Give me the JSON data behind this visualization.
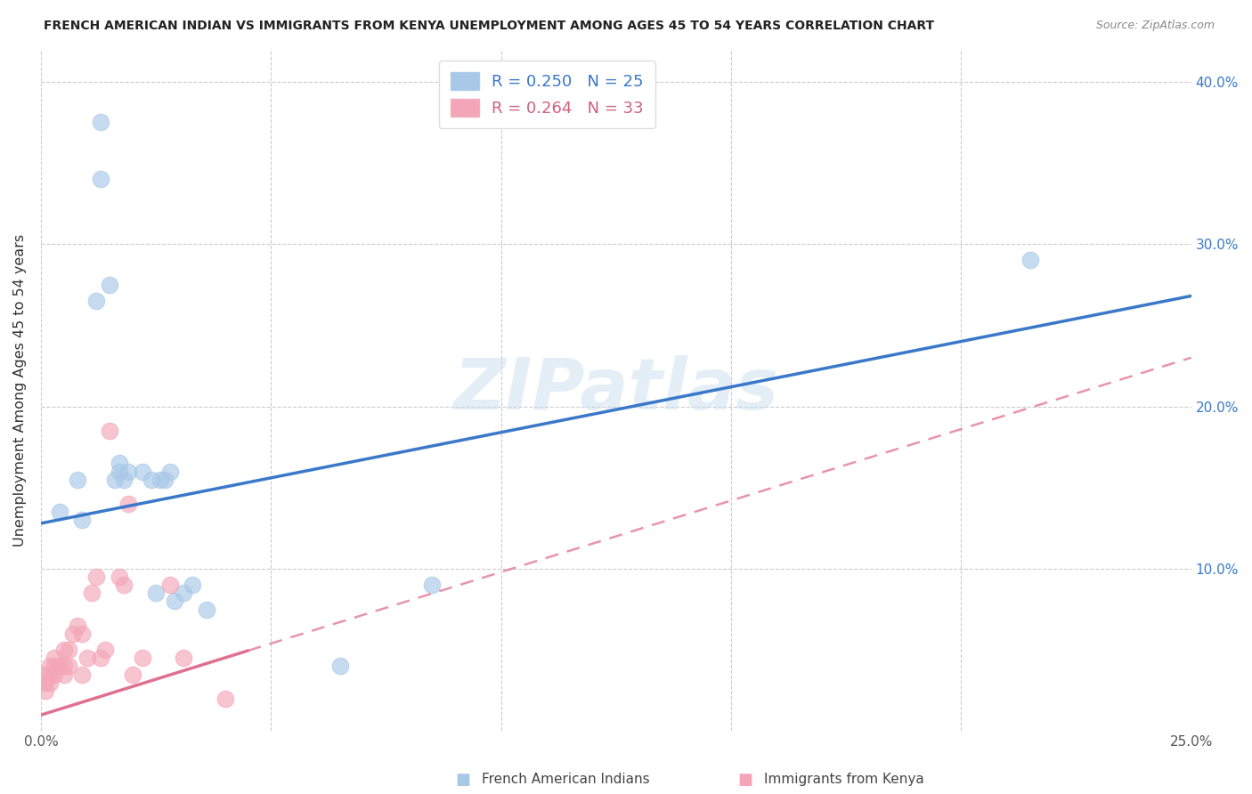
{
  "title": "FRENCH AMERICAN INDIAN VS IMMIGRANTS FROM KENYA UNEMPLOYMENT AMONG AGES 45 TO 54 YEARS CORRELATION CHART",
  "source": "Source: ZipAtlas.com",
  "xlabel_bottom_blue": "French American Indians",
  "xlabel_bottom_pink": "Immigrants from Kenya",
  "ylabel": "Unemployment Among Ages 45 to 54 years",
  "xlim": [
    0.0,
    0.25
  ],
  "ylim": [
    0.0,
    0.42
  ],
  "xticks": [
    0.0,
    0.05,
    0.1,
    0.15,
    0.2,
    0.25
  ],
  "xtick_labels": [
    "0.0%",
    "",
    "",
    "",
    "",
    "25.0%"
  ],
  "yticks": [
    0.0,
    0.1,
    0.2,
    0.3,
    0.4
  ],
  "ytick_labels_right": [
    "",
    "10.0%",
    "20.0%",
    "30.0%",
    "40.0%"
  ],
  "legend_blue_R": "R = 0.250",
  "legend_blue_N": "N = 25",
  "legend_pink_R": "R = 0.264",
  "legend_pink_N": "N = 33",
  "blue_color": "#a8c8e8",
  "pink_color": "#f4a6b8",
  "blue_line_color": "#3a78c9",
  "pink_line_color": "#e07090",
  "pink_line_solid_end": 0.045,
  "watermark_text": "ZIPatlas",
  "blue_line_intercept": 0.128,
  "blue_line_slope": 0.56,
  "pink_line_intercept": 0.01,
  "pink_line_slope": 0.88,
  "blue_scatter_x": [
    0.004,
    0.008,
    0.009,
    0.012,
    0.013,
    0.013,
    0.015,
    0.016,
    0.017,
    0.017,
    0.018,
    0.019,
    0.022,
    0.024,
    0.025,
    0.026,
    0.027,
    0.028,
    0.029,
    0.031,
    0.033,
    0.036,
    0.065,
    0.085,
    0.215
  ],
  "blue_scatter_y": [
    0.135,
    0.155,
    0.13,
    0.265,
    0.375,
    0.34,
    0.275,
    0.155,
    0.16,
    0.165,
    0.155,
    0.16,
    0.16,
    0.155,
    0.085,
    0.155,
    0.155,
    0.16,
    0.08,
    0.085,
    0.09,
    0.075,
    0.04,
    0.09,
    0.29
  ],
  "pink_scatter_x": [
    0.001,
    0.001,
    0.001,
    0.002,
    0.002,
    0.002,
    0.003,
    0.003,
    0.003,
    0.004,
    0.005,
    0.005,
    0.005,
    0.006,
    0.006,
    0.007,
    0.008,
    0.009,
    0.009,
    0.01,
    0.011,
    0.012,
    0.013,
    0.014,
    0.015,
    0.017,
    0.018,
    0.019,
    0.02,
    0.022,
    0.028,
    0.031,
    0.04
  ],
  "pink_scatter_y": [
    0.025,
    0.03,
    0.035,
    0.03,
    0.035,
    0.04,
    0.035,
    0.04,
    0.045,
    0.04,
    0.035,
    0.04,
    0.05,
    0.04,
    0.05,
    0.06,
    0.065,
    0.035,
    0.06,
    0.045,
    0.085,
    0.095,
    0.045,
    0.05,
    0.185,
    0.095,
    0.09,
    0.14,
    0.035,
    0.045,
    0.09,
    0.045,
    0.02
  ]
}
